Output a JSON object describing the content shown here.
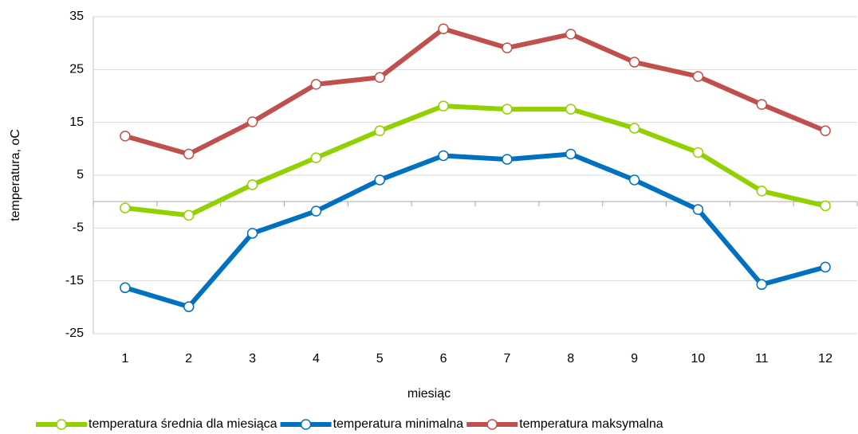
{
  "chart_data": {
    "type": "line",
    "x_label": "miesiąc",
    "y_label": "temperatura, oC",
    "categories": [
      1,
      2,
      3,
      4,
      5,
      6,
      7,
      8,
      9,
      10,
      11,
      12
    ],
    "series": [
      {
        "name": "temperatura średnia dla miesiąca",
        "color": "#92d000",
        "values": [
          -1.2,
          -2.6,
          3.2,
          8.3,
          13.4,
          18.1,
          17.5,
          17.5,
          13.9,
          9.3,
          2.0,
          -0.8
        ]
      },
      {
        "name": "temperatura minimalna",
        "color": "#0070c0",
        "values": [
          -16.3,
          -19.9,
          -6.0,
          -1.8,
          4.1,
          8.7,
          8.0,
          9.0,
          4.1,
          -1.5,
          -15.7,
          -12.4
        ]
      },
      {
        "name": "temperatura maksymalna",
        "color": "#c0504d",
        "values": [
          12.4,
          9.0,
          15.1,
          22.2,
          23.5,
          32.7,
          29.1,
          31.7,
          26.4,
          23.7,
          18.4,
          13.4
        ]
      }
    ],
    "ylim": [
      -25,
      35
    ],
    "yticks": [
      -25,
      -15,
      -5,
      5,
      15,
      25,
      35
    ],
    "grid": true,
    "legend": "bottom"
  }
}
